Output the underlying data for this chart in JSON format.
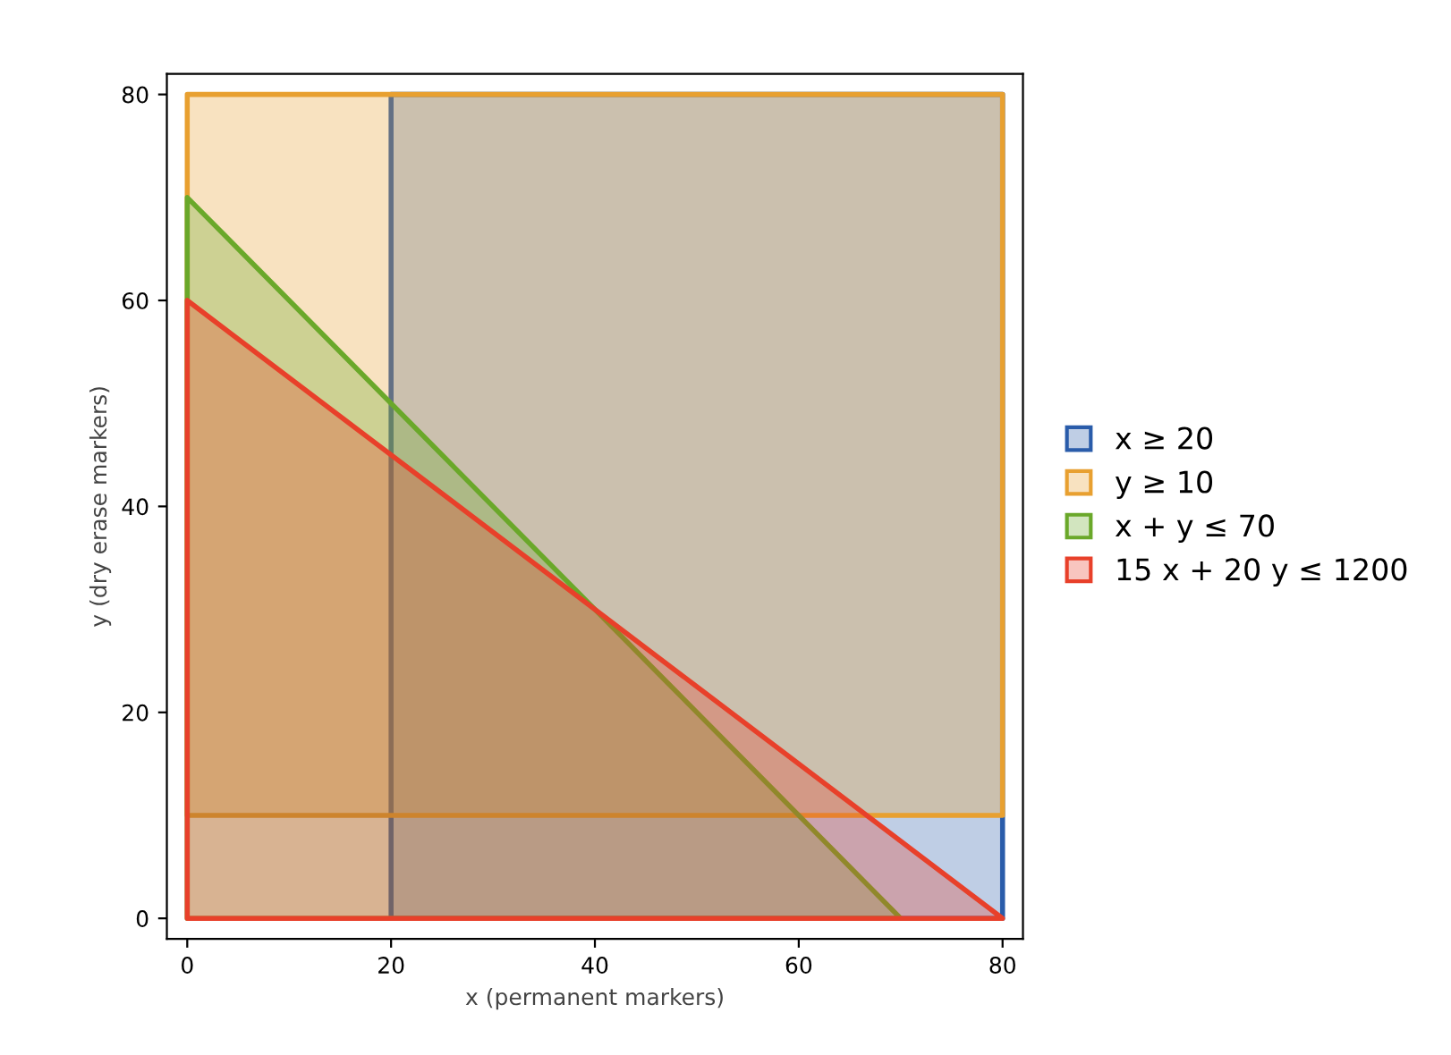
{
  "chart_data": {
    "type": "area",
    "xlabel": "x (permanent markers)",
    "ylabel": "y (dry erase markers)",
    "xlim": [
      -2,
      82
    ],
    "ylim": [
      -2,
      82
    ],
    "xticks": [
      0,
      20,
      40,
      60,
      80
    ],
    "yticks": [
      0,
      20,
      40,
      60,
      80
    ],
    "legend": "right",
    "series": [
      {
        "name": "x ≥ 20",
        "color": "#2a5caa",
        "x": [
          20,
          80,
          80,
          20,
          20
        ],
        "values": [
          0,
          0,
          80,
          80,
          0
        ]
      },
      {
        "name": "y ≥ 10",
        "color": "#e8a030",
        "x": [
          0,
          80,
          80,
          0,
          0
        ],
        "values": [
          10,
          10,
          80,
          80,
          10
        ]
      },
      {
        "name": "x + y ≤ 70",
        "color": "#6aa82a",
        "x": [
          0,
          70,
          0,
          0
        ],
        "values": [
          0,
          0,
          70,
          0
        ]
      },
      {
        "name": "15 x + 20 y ≤ 1200",
        "color": "#e8402a",
        "x": [
          0,
          80,
          0,
          0
        ],
        "values": [
          0,
          0,
          60,
          0
        ]
      }
    ]
  }
}
